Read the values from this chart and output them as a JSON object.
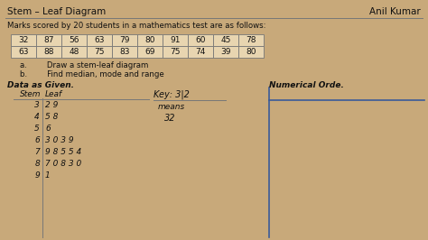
{
  "title_left": "Stem – Leaf Diagram",
  "title_right": "Anil Kumar",
  "subtitle": "Marks scored by 20 students in a mathematics test are as follows:",
  "table_row1": [
    "32",
    "87",
    "56",
    "63",
    "79",
    "80",
    "91",
    "60",
    "45",
    "78"
  ],
  "table_row2": [
    "63",
    "88",
    "48",
    "75",
    "83",
    "69",
    "75",
    "74",
    "39",
    "80"
  ],
  "instr1": "a.        Draw a stem-leaf diagram",
  "instr2": "b.        Find median, mode and range",
  "data_label": "Data as Given.",
  "numerical_label": "Numerical Orde.",
  "stem_header": "Stem",
  "leaf_header": "Leaf",
  "stem_leaf_data": [
    {
      "stem": "3",
      "leaves": "2 9"
    },
    {
      "stem": "4",
      "leaves": "5 8"
    },
    {
      "stem": "5",
      "leaves": "6"
    },
    {
      "stem": "6",
      "leaves": "3 0 3 9"
    },
    {
      "stem": "7",
      "leaves": "9 8 5 5 4"
    },
    {
      "stem": "8",
      "leaves": "7 0 8 3 0"
    },
    {
      "stem": "9",
      "leaves": "1"
    }
  ],
  "key_text": "Key: 3|2",
  "key_means": "means",
  "key_value": "32",
  "bg_color": "#c8a97a",
  "text_color": "#111111",
  "table_bg": "#e8d5b0",
  "border_color": "#777777",
  "blue_color": "#3a5a9a"
}
